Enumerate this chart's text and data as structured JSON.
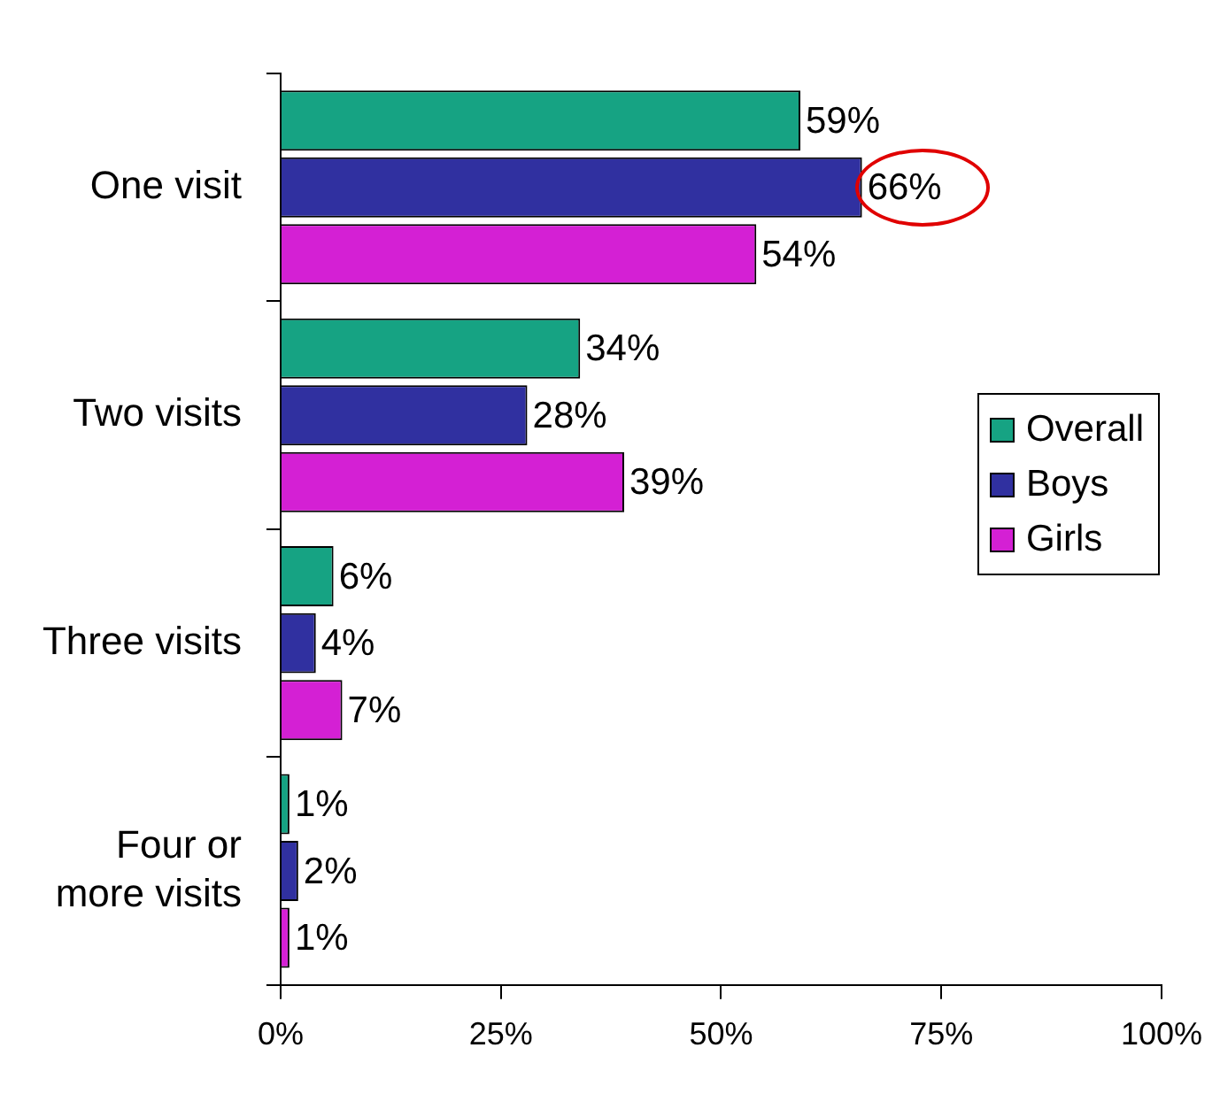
{
  "chart_data": {
    "type": "bar",
    "orientation": "horizontal",
    "categories": [
      "One visit",
      "Two visits",
      "Three visits",
      "Four or\nmore visits"
    ],
    "series": [
      {
        "name": "Overall",
        "color": "#16a383",
        "values": [
          59,
          34,
          6,
          1
        ],
        "value_labels": [
          "59%",
          "34%",
          "6%",
          "1%"
        ]
      },
      {
        "name": "Boys",
        "color": "#3030a0",
        "values": [
          66,
          28,
          4,
          2
        ],
        "value_labels": [
          "66%",
          "28%",
          "4%",
          "2%"
        ]
      },
      {
        "name": "Girls",
        "color": "#d420d4",
        "values": [
          54,
          39,
          7,
          1
        ],
        "value_labels": [
          "54%",
          "39%",
          "7%",
          "1%"
        ]
      }
    ],
    "xlim": [
      0,
      100
    ],
    "xticks": [
      {
        "value": 0,
        "label": "0%"
      },
      {
        "value": 25,
        "label": "25%"
      },
      {
        "value": 50,
        "label": "50%"
      },
      {
        "value": 75,
        "label": "75%"
      },
      {
        "value": 100,
        "label": "100%"
      }
    ],
    "grid": false,
    "legend": "right"
  }
}
